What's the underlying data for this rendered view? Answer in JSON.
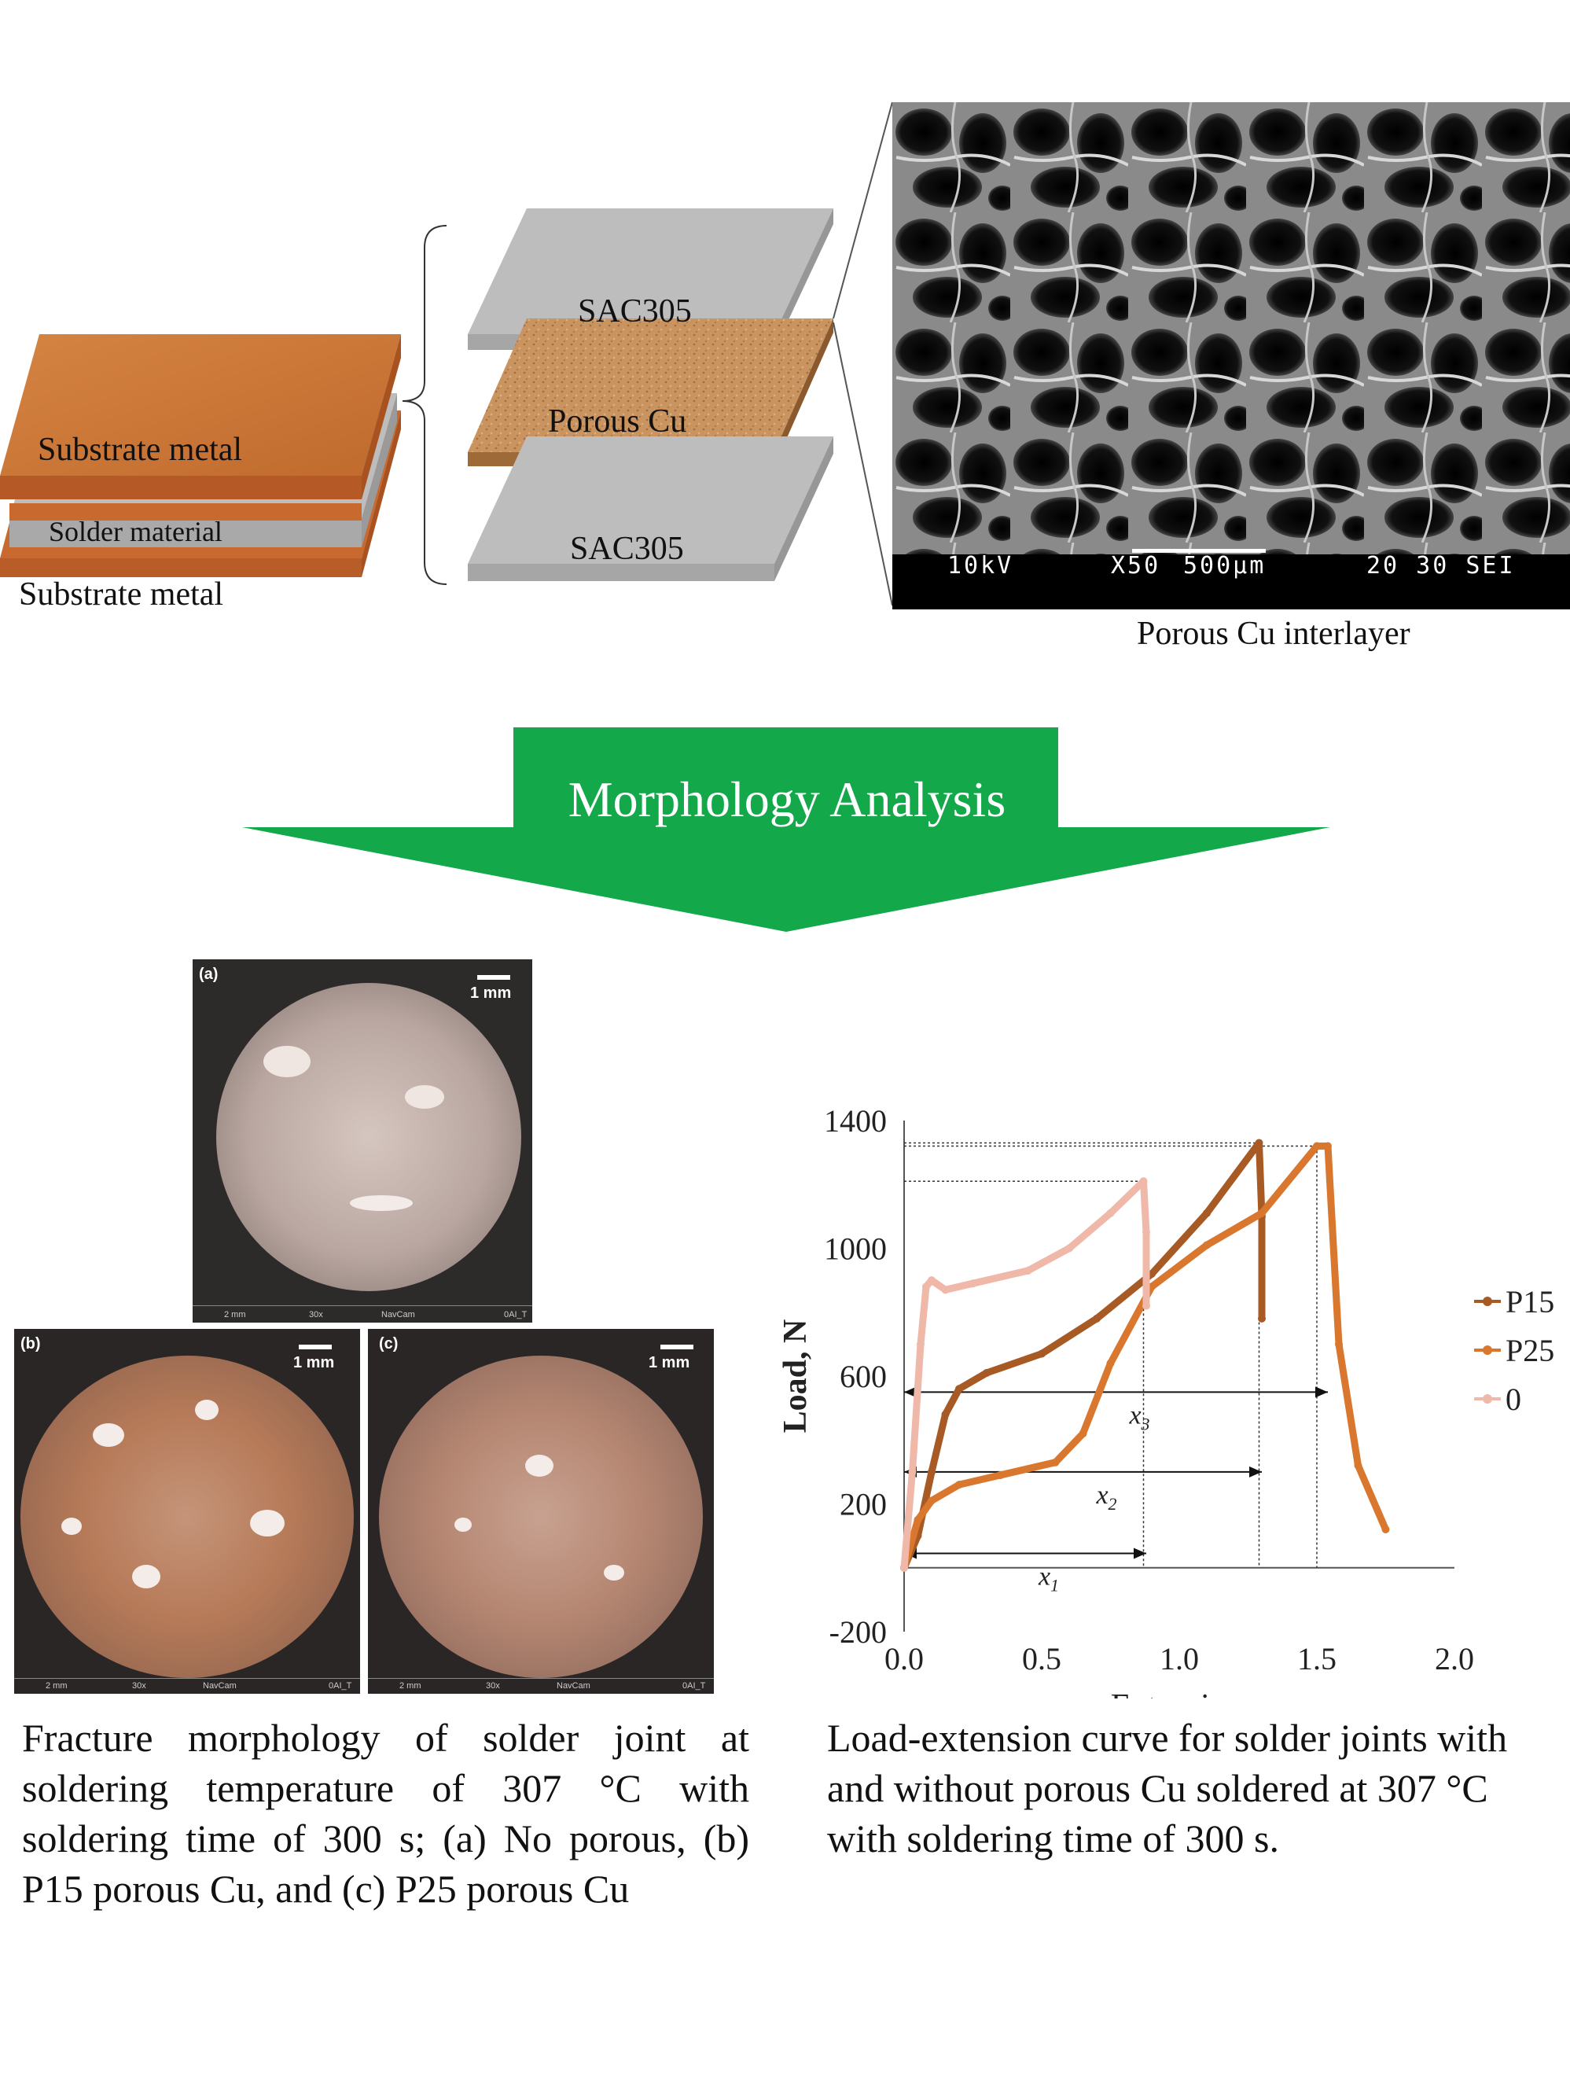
{
  "layered_sample": {
    "top_label": "Substrate metal",
    "middle_label": "Solder material",
    "bottom_label": "Substrate metal"
  },
  "exploded_view": {
    "top_layer": "SAC305",
    "middle_layer": "Porous Cu",
    "bottom_layer": "SAC305"
  },
  "sem_image": {
    "voltage": "10kV",
    "magnification": "X50",
    "scale": "500µm",
    "info": "20 30 SEI",
    "caption": "Porous Cu interlayer"
  },
  "arrow": {
    "label": "Morphology Analysis"
  },
  "micrographs": {
    "a": {
      "label": "(a)",
      "scale": "1 mm"
    },
    "b": {
      "label": "(b)",
      "scale": "1 mm"
    },
    "c": {
      "label": "(c)",
      "scale": "1 mm"
    },
    "footer_scale": "2 mm",
    "footer_zoom": "30x",
    "footer_cam": "NavCam",
    "footer_tag": "0AI_T"
  },
  "colors": {
    "copper": "#c86f36",
    "copper_top": "#d98a4a",
    "solder_grey": "#bfbfbf",
    "porous": "#c9955e",
    "arrow_green": "#13a84a",
    "p15": "#a85a24",
    "p25": "#d9772f",
    "p0": "#f0b8a8"
  },
  "chart_data": {
    "type": "line",
    "xlabel": "Extension, mm",
    "ylabel": "Load, N",
    "xlim": [
      0,
      2.0
    ],
    "ylim": [
      -200,
      1400
    ],
    "xticks": [
      "0.0",
      "0.5",
      "1.0",
      "1.5",
      "2.0"
    ],
    "yticks": [
      "1400",
      "1000",
      "600",
      "200",
      "-200"
    ],
    "legend_position": "right",
    "series": [
      {
        "name": "P15",
        "color": "#a85a24",
        "x": [
          0.0,
          0.05,
          0.1,
          0.15,
          0.2,
          0.3,
          0.5,
          0.7,
          0.9,
          1.1,
          1.29,
          1.3,
          1.3
        ],
        "y": [
          0,
          100,
          300,
          480,
          560,
          610,
          670,
          780,
          920,
          1110,
          1330,
          1100,
          780
        ]
      },
      {
        "name": "P25",
        "color": "#d9772f",
        "x": [
          0.0,
          0.05,
          0.1,
          0.2,
          0.35,
          0.55,
          0.65,
          0.75,
          0.9,
          1.1,
          1.3,
          1.5,
          1.54,
          1.58,
          1.65,
          1.75
        ],
        "y": [
          0,
          150,
          210,
          260,
          290,
          330,
          420,
          640,
          880,
          1010,
          1110,
          1320,
          1320,
          700,
          320,
          120
        ]
      },
      {
        "name": "0",
        "color": "#f0b8a8",
        "x": [
          0.0,
          0.03,
          0.06,
          0.08,
          0.1,
          0.15,
          0.25,
          0.45,
          0.6,
          0.75,
          0.87,
          0.88,
          0.88
        ],
        "y": [
          0,
          300,
          700,
          880,
          900,
          870,
          890,
          930,
          1000,
          1110,
          1210,
          1050,
          820
        ]
      }
    ],
    "annotations": [
      {
        "label": "x1",
        "from": 0.0,
        "to": 0.88,
        "y": 45
      },
      {
        "label": "x2",
        "from": 0.0,
        "to": 1.3,
        "y": 300
      },
      {
        "label": "x3",
        "from": 0.0,
        "to": 1.54,
        "y": 550
      }
    ]
  },
  "captions": {
    "left": "Fracture morphology of solder joint at soldering temperature of 307 °C with soldering time of 300 s; (a) No porous, (b) P15 porous Cu, and (c) P25 porous Cu",
    "right": "Load-extension curve for solder joints with and without porous Cu soldered at 307 °C with soldering time of 300 s."
  }
}
